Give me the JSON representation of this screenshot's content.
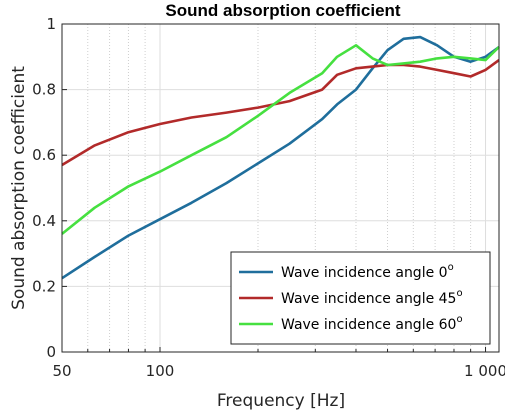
{
  "chart_data": {
    "type": "line",
    "title": "Sound absorption coefficient",
    "xlabel": "Frequency [Hz]",
    "ylabel": "Sound absorption coefficient",
    "x_scale": "log",
    "xlim": [
      50,
      1100
    ],
    "ylim": [
      0,
      1
    ],
    "x_ticks": [
      50,
      100,
      1000
    ],
    "x_tick_labels": [
      "50",
      "100",
      "1 000"
    ],
    "y_ticks": [
      0,
      0.2,
      0.4,
      0.6,
      0.8,
      1
    ],
    "y_tick_labels": [
      "0",
      "0.2",
      "0.4",
      "0.6",
      "0.8",
      "1"
    ],
    "grid": true,
    "legend_position": "bottom-right",
    "x": [
      50,
      63,
      80,
      100,
      125,
      160,
      200,
      250,
      315,
      350,
      400,
      450,
      500,
      560,
      630,
      710,
      800,
      900,
      1000,
      1100
    ],
    "series": [
      {
        "name": "Wave incidence angle 0",
        "name_sup": "o",
        "color": "#1f6e9c",
        "values": [
          0.225,
          0.29,
          0.355,
          0.405,
          0.455,
          0.515,
          0.575,
          0.635,
          0.71,
          0.755,
          0.8,
          0.865,
          0.92,
          0.955,
          0.96,
          0.935,
          0.9,
          0.885,
          0.9,
          0.93
        ]
      },
      {
        "name": "Wave incidence angle 45",
        "name_sup": "o",
        "color": "#b22a2a",
        "values": [
          0.57,
          0.63,
          0.67,
          0.695,
          0.715,
          0.73,
          0.745,
          0.765,
          0.8,
          0.845,
          0.865,
          0.87,
          0.875,
          0.875,
          0.87,
          0.86,
          0.85,
          0.84,
          0.86,
          0.89
        ]
      },
      {
        "name": "Wave incidence angle 60",
        "name_sup": "o",
        "color": "#46e040",
        "values": [
          0.36,
          0.44,
          0.505,
          0.55,
          0.6,
          0.655,
          0.72,
          0.79,
          0.85,
          0.9,
          0.935,
          0.895,
          0.875,
          0.88,
          0.885,
          0.895,
          0.9,
          0.895,
          0.89,
          0.93
        ]
      }
    ]
  }
}
